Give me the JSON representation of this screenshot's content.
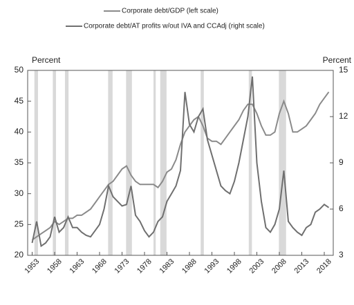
{
  "chart_data": {
    "type": "line",
    "series": [
      {
        "name": "Corporate debt/GDP (left scale)",
        "color": "#8a8a8a",
        "axis": "y",
        "x": [
          1953,
          1954,
          1955,
          1956,
          1957,
          1958,
          1959,
          1960,
          1961,
          1962,
          1963,
          1964,
          1965,
          1966,
          1967,
          1968,
          1969,
          1970,
          1971,
          1972,
          1973,
          1974,
          1975,
          1976,
          1977,
          1978,
          1979,
          1980,
          1981,
          1982,
          1983,
          1984,
          1985,
          1986,
          1987,
          1988,
          1989,
          1990,
          1991,
          1992,
          1993,
          1994,
          1995,
          1996,
          1997,
          1998,
          1999,
          2000,
          2001,
          2002,
          2003,
          2004,
          2005,
          2006,
          2007,
          2008,
          2009,
          2010,
          2011,
          2012,
          2013,
          2014,
          2015,
          2016,
          2017,
          2018,
          2019
        ],
        "values": [
          22.5,
          23,
          23.5,
          24,
          24.5,
          25.5,
          25,
          25.5,
          26,
          26,
          26.5,
          26.5,
          27,
          27.5,
          28.5,
          29.5,
          30.5,
          31.5,
          32,
          33,
          34,
          34.5,
          33,
          32,
          31.5,
          31.5,
          31.5,
          31.5,
          31,
          32,
          33.5,
          34,
          35.5,
          38,
          40,
          41,
          42,
          42.5,
          41,
          39,
          38.5,
          38.5,
          38,
          39,
          40,
          41,
          42,
          43.5,
          44.5,
          44.5,
          43,
          41,
          39.5,
          39.5,
          40,
          43,
          45,
          43,
          40,
          40,
          40.5,
          41,
          42,
          43,
          44.5,
          45.5,
          46.5
        ]
      },
      {
        "name": "Corporate debt/AT profits w/out IVA and CCAdj (right scale)",
        "color": "#6f6f6f",
        "axis": "y2",
        "x": [
          1953,
          1954,
          1955,
          1956,
          1957,
          1958,
          1959,
          1960,
          1961,
          1962,
          1963,
          1964,
          1965,
          1966,
          1967,
          1968,
          1969,
          1970,
          1971,
          1972,
          1973,
          1974,
          1975,
          1976,
          1977,
          1978,
          1979,
          1980,
          1981,
          1982,
          1983,
          1984,
          1985,
          1986,
          1987,
          1988,
          1989,
          1990,
          1991,
          1992,
          1993,
          1994,
          1995,
          1996,
          1997,
          1998,
          1999,
          2000,
          2001,
          2002,
          2003,
          2004,
          2005,
          2006,
          2007,
          2008,
          2009,
          2010,
          2011,
          2012,
          2013,
          2014,
          2015,
          2016,
          2017,
          2018,
          2019
        ],
        "values": [
          3.8,
          5.2,
          3.6,
          3.8,
          4.2,
          5.5,
          4.5,
          4.8,
          5.5,
          4.8,
          4.8,
          4.5,
          4.3,
          4.2,
          4.6,
          5,
          6,
          7.5,
          6.8,
          6.5,
          6.2,
          6.3,
          7.5,
          5.6,
          5.2,
          4.6,
          4.2,
          4.5,
          5.2,
          5.5,
          6.5,
          7,
          7.5,
          8.5,
          13.6,
          11.5,
          11,
          12,
          12.5,
          10.5,
          9.5,
          8.5,
          7.5,
          7.2,
          7,
          7.8,
          9,
          10.5,
          12,
          14.6,
          9,
          6.5,
          4.8,
          4.5,
          5,
          6,
          8.5,
          5.2,
          4.8,
          4.5,
          4.3,
          4.8,
          5,
          5.8,
          6,
          6.3,
          6.1
        ]
      }
    ],
    "recessions": [
      [
        1953.5,
        1954.3
      ],
      [
        1957.6,
        1958.3
      ],
      [
        1960.3,
        1961.1
      ],
      [
        1969.9,
        1970.9
      ],
      [
        1973.9,
        1975.2
      ],
      [
        1980.0,
        1980.5
      ],
      [
        1981.5,
        1982.9
      ],
      [
        1990.5,
        1991.2
      ],
      [
        2001.2,
        2001.9
      ],
      [
        2007.9,
        2009.5
      ]
    ],
    "ylabel": "Percent",
    "y2label": "Percent",
    "xlim": [
      1952,
      2020
    ],
    "xticks": [
      1953,
      1958,
      1963,
      1968,
      1973,
      1978,
      1983,
      1988,
      1993,
      1998,
      2003,
      2008,
      2013,
      2018
    ],
    "ylim": [
      20,
      50
    ],
    "yticks": [
      20,
      25,
      30,
      35,
      40,
      45,
      50
    ],
    "y2lim": [
      3,
      15
    ],
    "y2ticks": [
      3,
      6,
      9,
      12,
      15
    ]
  }
}
